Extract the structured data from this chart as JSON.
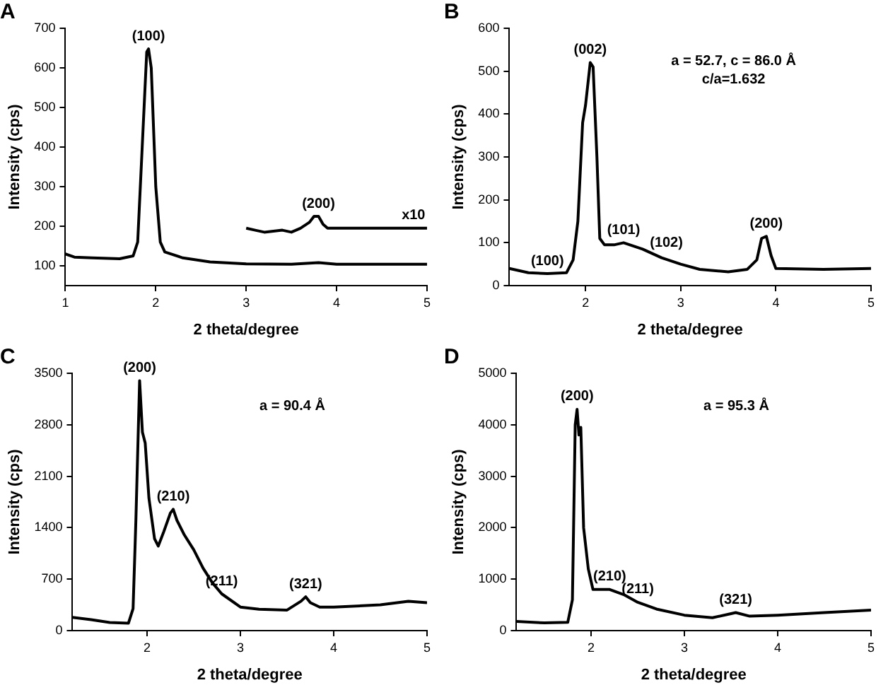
{
  "chart_data": [
    {
      "type": "line",
      "title": "A",
      "xlabel": "2 theta/degree",
      "ylabel": "Intensity (cps)",
      "xlim": [
        1,
        5
      ],
      "xticks": [
        1,
        2,
        3,
        4,
        5
      ],
      "ylim": [
        50,
        700
      ],
      "yticks": [
        100,
        200,
        300,
        400,
        500,
        600,
        700
      ],
      "grid": false,
      "legend": false,
      "marker": "none",
      "line_style": "solid",
      "series": [
        {
          "color": "#000000",
          "x": [
            1.0,
            1.1,
            1.3,
            1.6,
            1.75,
            1.8,
            1.85,
            1.9,
            1.92,
            1.95,
            2.0,
            2.05,
            2.1,
            2.3,
            2.6,
            3.0,
            3.5,
            3.8,
            4.0,
            5.0
          ],
          "values": [
            130,
            122,
            120,
            118,
            125,
            160,
            400,
            640,
            648,
            600,
            300,
            160,
            135,
            120,
            110,
            105,
            104,
            108,
            104,
            104
          ]
        },
        {
          "color": "#000000",
          "x": [
            3.0,
            3.1,
            3.2,
            3.4,
            3.5,
            3.6,
            3.7,
            3.75,
            3.8,
            3.85,
            3.9,
            4.2,
            4.6,
            5.0
          ],
          "values": [
            195,
            190,
            185,
            190,
            185,
            195,
            210,
            225,
            225,
            205,
            195,
            195,
            195,
            195
          ]
        }
      ],
      "annotations": [
        {
          "text": "(100)",
          "x": 1.92,
          "y": 648
        },
        {
          "text": "(200)",
          "x": 3.8,
          "y": 225
        },
        {
          "text": "x10",
          "x": 4.85,
          "y": 195
        }
      ]
    },
    {
      "type": "line",
      "title": "B",
      "xlabel": "2 theta/degree",
      "ylabel": "Intensity (cps)",
      "xlim": [
        1.2,
        5
      ],
      "xticks": [
        2,
        3,
        4,
        5
      ],
      "ylim": [
        0,
        600
      ],
      "yticks": [
        0,
        100,
        200,
        300,
        400,
        500,
        600
      ],
      "grid": false,
      "legend": false,
      "marker": "none",
      "line_style": "solid",
      "series": [
        {
          "color": "#000000",
          "x": [
            1.2,
            1.4,
            1.6,
            1.8,
            1.87,
            1.92,
            1.97,
            2.0,
            2.05,
            2.08,
            2.12,
            2.15,
            2.2,
            2.3,
            2.4,
            2.6,
            2.8,
            3.0,
            3.2,
            3.5,
            3.7,
            3.8,
            3.85,
            3.9,
            3.95,
            4.0,
            4.5,
            5.0
          ],
          "values": [
            40,
            30,
            28,
            30,
            60,
            150,
            380,
            420,
            520,
            510,
            300,
            110,
            95,
            95,
            100,
            85,
            65,
            50,
            38,
            32,
            38,
            60,
            110,
            115,
            70,
            40,
            38,
            40
          ]
        }
      ],
      "annotations": [
        {
          "text": "(002)",
          "x": 2.05,
          "y": 520
        },
        {
          "text": "(100)",
          "x": 1.6,
          "y": 28
        },
        {
          "text": "(101)",
          "x": 2.4,
          "y": 100
        },
        {
          "text": "(102)",
          "x": 2.85,
          "y": 70
        },
        {
          "text": "(200)",
          "x": 3.9,
          "y": 115
        },
        "a = 52.7, c = 86.0 Å",
        "c/a=1.632"
      ]
    },
    {
      "type": "line",
      "title": "C",
      "xlabel": "2 theta/degree",
      "ylabel": "Intensity (cps)",
      "xlim": [
        1.2,
        5
      ],
      "xticks": [
        2,
        3,
        4,
        5
      ],
      "ylim": [
        0,
        3500
      ],
      "yticks": [
        0,
        700,
        1400,
        2100,
        2800,
        3500
      ],
      "grid": false,
      "legend": false,
      "marker": "none",
      "line_style": "solid",
      "series": [
        {
          "color": "#000000",
          "x": [
            1.2,
            1.4,
            1.6,
            1.8,
            1.85,
            1.88,
            1.92,
            1.95,
            1.98,
            2.02,
            2.08,
            2.12,
            2.18,
            2.25,
            2.28,
            2.32,
            2.4,
            2.5,
            2.6,
            2.7,
            2.8,
            3.0,
            3.2,
            3.5,
            3.65,
            3.7,
            3.75,
            3.85,
            4.0,
            4.5,
            4.8,
            5.0
          ],
          "values": [
            180,
            150,
            110,
            100,
            300,
            1500,
            3400,
            2700,
            2550,
            1800,
            1250,
            1150,
            1350,
            1600,
            1650,
            1500,
            1300,
            1100,
            850,
            650,
            500,
            320,
            290,
            280,
            400,
            460,
            380,
            320,
            320,
            350,
            400,
            380
          ]
        }
      ],
      "annotations": [
        {
          "text": "(200)",
          "x": 1.92,
          "y": 3400
        },
        {
          "text": "(210)",
          "x": 2.28,
          "y": 1650
        },
        {
          "text": "(211)",
          "x": 2.8,
          "y": 500
        },
        {
          "text": "(321)",
          "x": 3.7,
          "y": 460
        },
        "a = 90.4 Å"
      ]
    },
    {
      "type": "line",
      "title": "D",
      "xlabel": "2 theta/degree",
      "ylabel": "Intensity (cps)",
      "xlim": [
        1.2,
        5
      ],
      "xticks": [
        2,
        3,
        4,
        5
      ],
      "ylim": [
        0,
        5000
      ],
      "yticks": [
        0,
        1000,
        2000,
        3000,
        4000,
        5000
      ],
      "grid": false,
      "legend": false,
      "marker": "none",
      "line_style": "solid",
      "series": [
        {
          "color": "#000000",
          "x": [
            1.2,
            1.5,
            1.75,
            1.8,
            1.83,
            1.85,
            1.87,
            1.89,
            1.92,
            1.97,
            2.02,
            2.2,
            2.35,
            2.5,
            2.7,
            3.0,
            3.3,
            3.5,
            3.55,
            3.7,
            4.0,
            4.5,
            5.0
          ],
          "values": [
            180,
            150,
            160,
            600,
            4000,
            4300,
            3800,
            3950,
            2000,
            1200,
            800,
            800,
            700,
            550,
            420,
            300,
            250,
            330,
            350,
            280,
            300,
            350,
            400
          ]
        }
      ],
      "annotations": [
        {
          "text": "(200)",
          "x": 1.85,
          "y": 4300
        },
        {
          "text": "(210)",
          "x": 2.2,
          "y": 800
        },
        {
          "text": "(211)",
          "x": 2.5,
          "y": 550
        },
        {
          "text": "(321)",
          "x": 3.55,
          "y": 350
        },
        "a = 95.3 Å"
      ]
    }
  ]
}
